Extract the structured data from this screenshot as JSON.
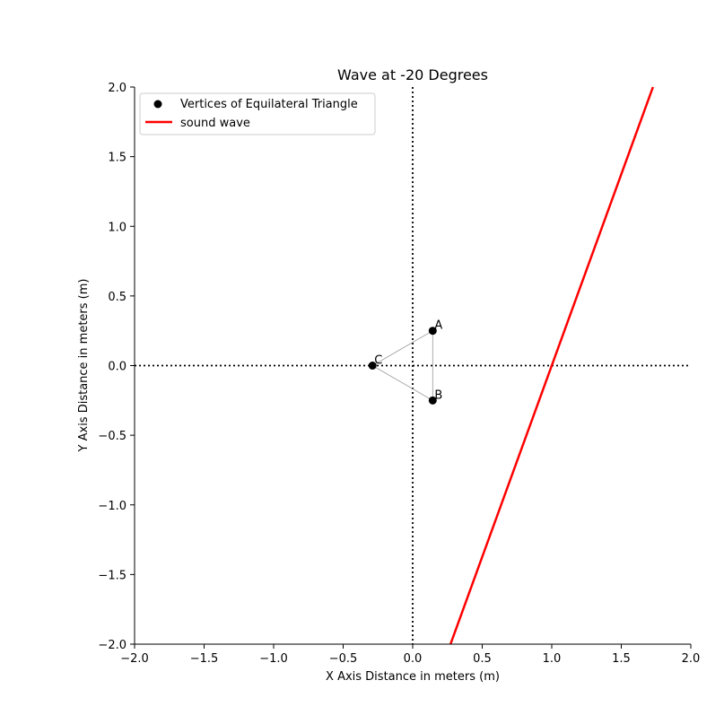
{
  "chart_data": {
    "type": "scatter",
    "title": "Wave at -20 Degrees",
    "xlabel": "X Axis Distance in meters (m)",
    "ylabel": "Y Axis Distance in meters (m)",
    "xlim": [
      -2.0,
      2.0
    ],
    "ylim": [
      -2.0,
      2.0
    ],
    "x_ticks": [
      "−2.0",
      "−1.5",
      "−1.0",
      "−0.5",
      "0.0",
      "0.5",
      "1.0",
      "1.5",
      "2.0"
    ],
    "y_ticks": [
      "−2.0",
      "−1.5",
      "−1.0",
      "−0.5",
      "0.0",
      "0.5",
      "1.0",
      "1.5",
      "2.0"
    ],
    "legend_position": "top-left",
    "grid": false,
    "reference_lines": {
      "x": 0.0,
      "y": 0.0,
      "style": "dotted",
      "color": "#000000"
    },
    "series": [
      {
        "name": "Vertices of Equilateral Triangle",
        "kind": "scatter",
        "color": "#000000",
        "points": [
          {
            "label": "A",
            "x": 0.144,
            "y": 0.25
          },
          {
            "label": "B",
            "x": 0.144,
            "y": -0.25
          },
          {
            "label": "C",
            "x": -0.289,
            "y": 0.0
          }
        ]
      },
      {
        "name": "sound wave",
        "kind": "line",
        "color": "#ff0000",
        "x": [
          0.272,
          1.728
        ],
        "y": [
          -2.0,
          2.0
        ]
      }
    ],
    "triangle_edges": {
      "vertices": [
        "A",
        "B",
        "C",
        "A"
      ],
      "color": "#999999"
    }
  }
}
